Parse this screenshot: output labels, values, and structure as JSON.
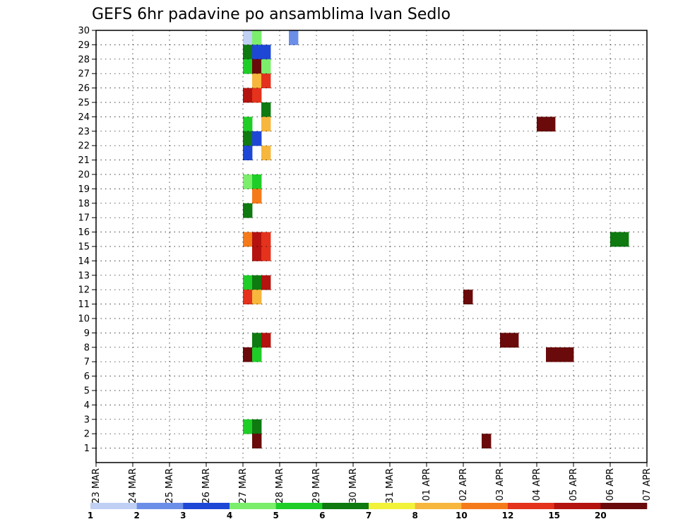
{
  "chart_data": {
    "type": "heatmap",
    "title": "GEFS 6hr padavine po ansamblima Ivan Sedlo",
    "xlabel": "",
    "ylabel": "",
    "x_tick_labels": [
      "23 MAR",
      "24 MAR",
      "25 MAR",
      "26 MAR",
      "27 MAR",
      "28 MAR",
      "29 MAR",
      "30 MAR",
      "31 MAR",
      "01 APR",
      "02 APR",
      "03 APR",
      "04 APR",
      "05 APR",
      "06 APR",
      "07 APR"
    ],
    "y_tick_labels": [
      "1",
      "2",
      "3",
      "4",
      "5",
      "6",
      "7",
      "8",
      "9",
      "10",
      "11",
      "12",
      "13",
      "14",
      "15",
      "16",
      "17",
      "18",
      "19",
      "20",
      "21",
      "22",
      "23",
      "24",
      "25",
      "26",
      "27",
      "28",
      "29",
      "30"
    ],
    "x_step_hours": 6,
    "y_range": [
      0,
      30
    ],
    "grid": true,
    "colorbar": {
      "placement": "bottom",
      "labels": [
        "1",
        "2",
        "3",
        "4",
        "5",
        "6",
        "7",
        "8",
        "10",
        "12",
        "15",
        "20"
      ],
      "colors": [
        "#c0d0f5",
        "#6b8ee8",
        "#1e47d6",
        "#7bee6b",
        "#1fcd27",
        "#0e7a10",
        "#f2f23a",
        "#f7b63c",
        "#f57a1a",
        "#e4321c",
        "#b4130f",
        "#6a0a0a"
      ]
    },
    "cells": [
      {
        "t": "27 MAR 00",
        "m": 30,
        "v": 1
      },
      {
        "t": "27 MAR 06",
        "m": 30,
        "v": 4
      },
      {
        "t": "28 MAR 06",
        "m": 30,
        "v": 2
      },
      {
        "t": "27 MAR 00",
        "m": 29,
        "v": 6
      },
      {
        "t": "27 MAR 06",
        "m": 29,
        "v": 3
      },
      {
        "t": "27 MAR 12",
        "m": 29,
        "v": 3
      },
      {
        "t": "27 MAR 00",
        "m": 28,
        "v": 5
      },
      {
        "t": "27 MAR 06",
        "m": 28,
        "v": 20
      },
      {
        "t": "27 MAR 12",
        "m": 28,
        "v": 4
      },
      {
        "t": "27 MAR 06",
        "m": 27,
        "v": 8
      },
      {
        "t": "27 MAR 12",
        "m": 27,
        "v": 12
      },
      {
        "t": "27 MAR 00",
        "m": 26,
        "v": 15
      },
      {
        "t": "27 MAR 06",
        "m": 26,
        "v": 12
      },
      {
        "t": "27 MAR 12",
        "m": 25,
        "v": 6
      },
      {
        "t": "27 MAR 00",
        "m": 24,
        "v": 5
      },
      {
        "t": "27 MAR 12",
        "m": 24,
        "v": 8
      },
      {
        "t": "27 MAR 00",
        "m": 23,
        "v": 6
      },
      {
        "t": "27 MAR 06",
        "m": 23,
        "v": 3
      },
      {
        "t": "27 MAR 00",
        "m": 22,
        "v": 3
      },
      {
        "t": "27 MAR 12",
        "m": 22,
        "v": 8
      },
      {
        "t": "27 MAR 00",
        "m": 20,
        "v": 4
      },
      {
        "t": "27 MAR 06",
        "m": 20,
        "v": 5
      },
      {
        "t": "27 MAR 06",
        "m": 19,
        "v": 10
      },
      {
        "t": "27 MAR 00",
        "m": 18,
        "v": 6
      },
      {
        "t": "27 MAR 00",
        "m": 16,
        "v": 10
      },
      {
        "t": "27 MAR 06",
        "m": 16,
        "v": 15
      },
      {
        "t": "27 MAR 12",
        "m": 16,
        "v": 12
      },
      {
        "t": "27 MAR 06",
        "m": 15,
        "v": 15
      },
      {
        "t": "27 MAR 12",
        "m": 15,
        "v": 12
      },
      {
        "t": "27 MAR 00",
        "m": 13,
        "v": 5
      },
      {
        "t": "27 MAR 06",
        "m": 13,
        "v": 6
      },
      {
        "t": "27 MAR 12",
        "m": 13,
        "v": 15
      },
      {
        "t": "27 MAR 00",
        "m": 12,
        "v": 12
      },
      {
        "t": "27 MAR 06",
        "m": 12,
        "v": 8
      },
      {
        "t": "27 MAR 06",
        "m": 9,
        "v": 6
      },
      {
        "t": "27 MAR 12",
        "m": 9,
        "v": 15
      },
      {
        "t": "27 MAR 00",
        "m": 8,
        "v": 20
      },
      {
        "t": "27 MAR 06",
        "m": 8,
        "v": 5
      },
      {
        "t": "27 MAR 00",
        "m": 3,
        "v": 5
      },
      {
        "t": "27 MAR 06",
        "m": 3,
        "v": 6
      },
      {
        "t": "27 MAR 06",
        "m": 2,
        "v": 20
      },
      {
        "t": "04 APR 00",
        "m": 24,
        "v": 20
      },
      {
        "t": "04 APR 06",
        "m": 24,
        "v": 20
      },
      {
        "t": "03 APR 00",
        "m": 9,
        "v": 20
      },
      {
        "t": "03 APR 06",
        "m": 9,
        "v": 20
      },
      {
        "t": "04 APR 06",
        "m": 8,
        "v": 20
      },
      {
        "t": "04 APR 12",
        "m": 8,
        "v": 20
      },
      {
        "t": "04 APR 18",
        "m": 8,
        "v": 20
      },
      {
        "t": "02 APR 12",
        "m": 2,
        "v": 20
      },
      {
        "t": "02 APR 00",
        "m": 12,
        "v": 20
      },
      {
        "t": "06 APR 00",
        "m": 16,
        "v": 6
      },
      {
        "t": "06 APR 06",
        "m": 16,
        "v": 6
      }
    ]
  }
}
